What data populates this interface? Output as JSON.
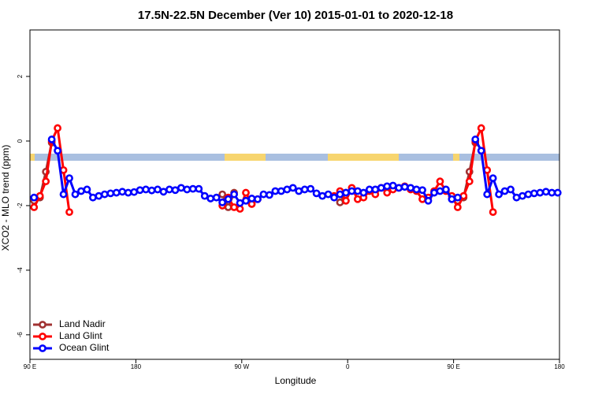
{
  "chart_data": {
    "type": "line",
    "title": "17.5N-22.5N December (Ver 10)   2015-01-01 to 2020-12-18",
    "x_label": "Longitude",
    "y_label": "XCO2 - MLO trend (ppm)",
    "x": [
      93.5,
      98.5,
      103.5,
      108.5,
      113.5,
      118.5,
      123.5,
      128.5,
      133.5,
      138.5,
      143.5,
      148.5,
      153.5,
      158.5,
      163.5,
      168.5,
      173.5,
      178.5,
      183.5,
      188.5,
      193.5,
      198.5,
      203.5,
      208.5,
      213.5,
      218.5,
      223.5,
      228.5,
      233.5,
      238.5,
      243.5,
      248.5,
      253.5,
      258.5,
      263.5,
      268.5,
      273.5,
      278.5,
      283.5,
      288.5,
      293.5,
      298.5,
      303.5,
      308.5,
      313.5,
      318.5,
      323.5,
      328.5,
      333.5,
      338.5,
      343.5,
      348.5,
      353.5,
      358.5,
      363.5,
      368.5,
      373.5,
      378.5,
      383.5,
      388.5,
      393.5,
      398.5,
      403.5,
      408.5,
      413.5,
      418.5,
      423.5,
      428.5,
      433.5,
      438.5,
      443.5,
      448.5,
      453.5,
      458.5,
      463.5,
      468.5,
      473.5,
      478.5,
      483.5,
      488.5,
      493.5,
      498.5,
      503.5,
      508.5,
      513.5,
      518.5,
      523.5,
      528.5,
      533.5,
      538.5
    ],
    "series": [
      {
        "name": "Land Nadir",
        "color": "#a03232",
        "values": [
          -1.85,
          -1.75,
          -0.95,
          -0.05,
          null,
          null,
          null,
          null,
          null,
          null,
          null,
          null,
          null,
          null,
          null,
          null,
          null,
          null,
          null,
          null,
          null,
          null,
          null,
          null,
          null,
          null,
          null,
          null,
          null,
          null,
          null,
          null,
          -1.65,
          -2.05,
          -1.6,
          null,
          null,
          -1.95,
          null,
          null,
          null,
          null,
          null,
          null,
          null,
          null,
          null,
          null,
          null,
          null,
          null,
          null,
          -1.9,
          -1.6,
          null,
          null,
          null,
          null,
          null,
          null,
          null,
          null,
          null,
          null,
          null,
          null,
          null,
          null,
          null,
          null,
          null,
          null,
          -1.85,
          -1.75,
          -0.95,
          -0.05,
          null,
          null,
          null,
          null,
          null,
          null,
          null,
          null,
          null,
          null,
          null,
          null,
          null,
          null
        ]
      },
      {
        "name": "Land Glint",
        "color": "#ff0000",
        "values": [
          -2.05,
          -1.7,
          -1.25,
          0.0,
          0.4,
          -0.9,
          -2.2,
          null,
          null,
          null,
          null,
          null,
          null,
          null,
          null,
          null,
          null,
          null,
          null,
          null,
          null,
          null,
          null,
          null,
          null,
          null,
          null,
          null,
          null,
          null,
          null,
          null,
          -2.0,
          -1.75,
          -2.05,
          -2.1,
          -1.6,
          -1.95,
          -1.8,
          null,
          null,
          null,
          null,
          null,
          null,
          null,
          null,
          null,
          null,
          null,
          null,
          -1.7,
          -1.55,
          -1.85,
          -1.45,
          -1.8,
          -1.75,
          -1.55,
          -1.65,
          -1.45,
          -1.6,
          -1.5,
          -1.45,
          -1.4,
          -1.5,
          -1.55,
          -1.8,
          -1.75,
          -1.55,
          -1.25,
          -1.55,
          -1.7,
          -2.05,
          -1.7,
          -1.25,
          0.0,
          0.4,
          -0.9,
          -2.2,
          null,
          null,
          null,
          null,
          null,
          null,
          null,
          null,
          null,
          null,
          null
        ]
      },
      {
        "name": "Ocean Glint",
        "color": "#0000ff",
        "values": [
          -1.75,
          null,
          null,
          0.05,
          -0.3,
          -1.65,
          -1.15,
          -1.65,
          -1.55,
          -1.5,
          -1.75,
          -1.7,
          -1.65,
          -1.62,
          -1.6,
          -1.57,
          -1.6,
          -1.58,
          -1.52,
          -1.5,
          -1.53,
          -1.5,
          -1.57,
          -1.5,
          -1.52,
          -1.45,
          -1.5,
          -1.48,
          -1.48,
          -1.7,
          -1.78,
          -1.75,
          -1.9,
          -1.8,
          -1.65,
          -1.92,
          -1.85,
          -1.78,
          -1.8,
          -1.65,
          -1.67,
          -1.55,
          -1.55,
          -1.5,
          -1.45,
          -1.55,
          -1.5,
          -1.48,
          -1.62,
          -1.7,
          -1.65,
          -1.75,
          -1.65,
          -1.6,
          -1.55,
          -1.55,
          -1.6,
          -1.5,
          -1.5,
          -1.45,
          -1.4,
          -1.38,
          -1.45,
          -1.42,
          -1.45,
          -1.5,
          -1.52,
          -1.85,
          -1.6,
          -1.55,
          -1.5,
          -1.8,
          -1.75,
          null,
          null,
          0.05,
          -0.3,
          -1.65,
          -1.15,
          -1.65,
          -1.55,
          -1.5,
          -1.75,
          -1.7,
          -1.65,
          -1.62,
          -1.6,
          -1.57,
          -1.6,
          -1.6
        ]
      }
    ],
    "xlim": [
      90,
      540
    ],
    "xticks": [
      {
        "value": 90,
        "label": "90 E"
      },
      {
        "value": 180,
        "label": "180"
      },
      {
        "value": 270,
        "label": "90 W"
      },
      {
        "value": 360,
        "label": "0"
      },
      {
        "value": 450,
        "label": "90 E"
      },
      {
        "value": 540,
        "label": "180"
      }
    ],
    "ylim": [
      -6.76,
      3.44
    ],
    "yticks": [
      -6,
      -4,
      -2,
      0,
      2
    ],
    "legend": "bottom-left"
  }
}
